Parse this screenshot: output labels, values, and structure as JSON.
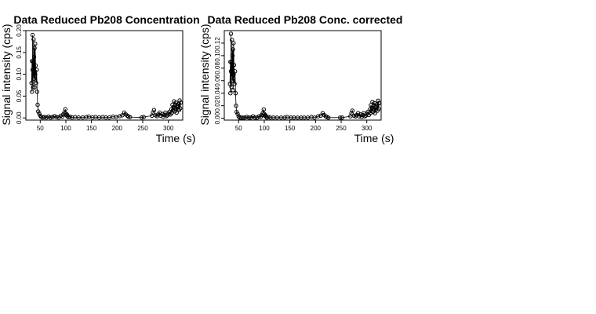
{
  "chart_data": [
    {
      "type": "scatter",
      "title": "Data Reduced Pb208 Concentration",
      "xlabel": "Time (s)",
      "ylabel": "Signal intensity (cps)",
      "xlim": [
        22,
        328
      ],
      "ylim": [
        -0.005,
        0.2
      ],
      "x_ticks": [
        50,
        100,
        150,
        200,
        250,
        300
      ],
      "y_ticks": [
        0.0,
        0.05,
        0.1,
        0.15,
        0.2
      ],
      "y_tick_labels": [
        "0.00",
        "0.05",
        "0.10",
        "0.15",
        "0.20"
      ],
      "x": [
        33,
        34,
        34,
        35,
        35,
        36,
        36,
        37,
        37,
        38,
        38,
        39,
        39,
        40,
        40,
        41,
        42,
        43,
        44,
        45,
        46,
        48,
        50,
        52,
        55,
        58,
        62,
        66,
        70,
        74,
        78,
        82,
        86,
        90,
        93,
        95,
        97,
        99,
        100,
        101,
        102,
        103,
        105,
        108,
        112,
        118,
        125,
        133,
        140,
        145,
        152,
        158,
        165,
        172,
        178,
        185,
        192,
        198,
        205,
        210,
        214,
        217,
        220,
        222,
        225,
        248,
        252,
        268,
        270,
        272,
        275,
        278,
        280,
        283,
        285,
        288,
        290,
        292,
        294,
        296,
        298,
        300,
        302,
        304,
        306,
        307,
        308,
        309,
        310,
        311,
        312,
        313,
        314,
        315,
        316,
        317,
        318,
        319,
        320,
        321,
        322,
        323,
        324
      ],
      "y": [
        0.08,
        0.13,
        0.06,
        0.11,
        0.19,
        0.07,
        0.13,
        0.1,
        0.18,
        0.09,
        0.14,
        0.16,
        0.07,
        0.1,
        0.17,
        0.12,
        0.08,
        0.11,
        0.06,
        0.03,
        0.015,
        0.01,
        0.005,
        0.002,
        0.001,
        0.002,
        0.001,
        0.003,
        0.001,
        0.002,
        0.004,
        0.002,
        0.001,
        0.005,
        0.003,
        0.008,
        0.012,
        0.02,
        0.01,
        0.006,
        0.008,
        0.004,
        0.002,
        0.003,
        0.001,
        0.002,
        0.001,
        0.001,
        0.002,
        0.003,
        0.001,
        0.002,
        0.001,
        0.002,
        0.001,
        0.001,
        0.003,
        0.002,
        0.004,
        0.006,
        0.012,
        0.008,
        0.005,
        0.003,
        0.002,
        0.001,
        0.002,
        0.005,
        0.012,
        0.018,
        0.006,
        0.004,
        0.008,
        0.012,
        0.005,
        0.009,
        0.003,
        0.007,
        0.012,
        0.004,
        0.006,
        0.01,
        0.014,
        0.008,
        0.02,
        0.012,
        0.03,
        0.018,
        0.025,
        0.038,
        0.015,
        0.022,
        0.03,
        0.035,
        0.012,
        0.025,
        0.02,
        0.028,
        0.032,
        0.018,
        0.04,
        0.022,
        0.035
      ]
    },
    {
      "type": "scatter",
      "title": "Data Reduced Pb208 Conc. corrected",
      "xlabel": "Time (s)",
      "ylabel": "Signal intensity (cps)",
      "xlim": [
        22,
        328
      ],
      "ylim": [
        -0.003,
        0.14
      ],
      "x_ticks": [
        50,
        100,
        150,
        200,
        250,
        300
      ],
      "y_ticks": [
        0.0,
        0.02,
        0.04,
        0.06,
        0.08,
        0.1,
        0.12
      ],
      "y_tick_labels": [
        "0.00",
        "0.02",
        "0.04",
        "0.06",
        "0.08",
        "0.10",
        "0.12"
      ],
      "x": [
        33,
        34,
        34,
        35,
        35,
        36,
        36,
        37,
        37,
        38,
        38,
        39,
        39,
        40,
        40,
        41,
        42,
        43,
        44,
        45,
        46,
        48,
        50,
        52,
        55,
        58,
        62,
        66,
        70,
        74,
        78,
        82,
        86,
        90,
        93,
        95,
        97,
        99,
        100,
        101,
        102,
        103,
        105,
        108,
        112,
        118,
        125,
        133,
        140,
        145,
        152,
        158,
        165,
        172,
        178,
        185,
        192,
        198,
        205,
        210,
        214,
        217,
        220,
        222,
        225,
        248,
        252,
        268,
        270,
        272,
        275,
        278,
        280,
        283,
        285,
        288,
        290,
        292,
        294,
        296,
        298,
        300,
        302,
        304,
        306,
        307,
        308,
        309,
        310,
        311,
        312,
        313,
        314,
        315,
        316,
        317,
        318,
        319,
        320,
        321,
        322,
        323,
        324
      ],
      "y": [
        0.055,
        0.09,
        0.04,
        0.075,
        0.135,
        0.05,
        0.09,
        0.07,
        0.125,
        0.06,
        0.1,
        0.11,
        0.045,
        0.07,
        0.12,
        0.085,
        0.055,
        0.075,
        0.04,
        0.02,
        0.01,
        0.007,
        0.003,
        0.001,
        0.001,
        0.001,
        0.001,
        0.002,
        0.001,
        0.001,
        0.003,
        0.001,
        0.001,
        0.003,
        0.002,
        0.005,
        0.008,
        0.014,
        0.007,
        0.004,
        0.005,
        0.003,
        0.001,
        0.002,
        0.001,
        0.001,
        0.001,
        0.001,
        0.001,
        0.002,
        0.001,
        0.001,
        0.001,
        0.001,
        0.001,
        0.001,
        0.002,
        0.001,
        0.003,
        0.004,
        0.008,
        0.005,
        0.003,
        0.002,
        0.001,
        0.001,
        0.001,
        0.003,
        0.008,
        0.012,
        0.004,
        0.003,
        0.005,
        0.008,
        0.003,
        0.006,
        0.002,
        0.005,
        0.008,
        0.003,
        0.004,
        0.007,
        0.01,
        0.005,
        0.014,
        0.008,
        0.021,
        0.012,
        0.017,
        0.026,
        0.01,
        0.015,
        0.021,
        0.024,
        0.008,
        0.017,
        0.014,
        0.019,
        0.022,
        0.012,
        0.028,
        0.015,
        0.024
      ]
    }
  ]
}
